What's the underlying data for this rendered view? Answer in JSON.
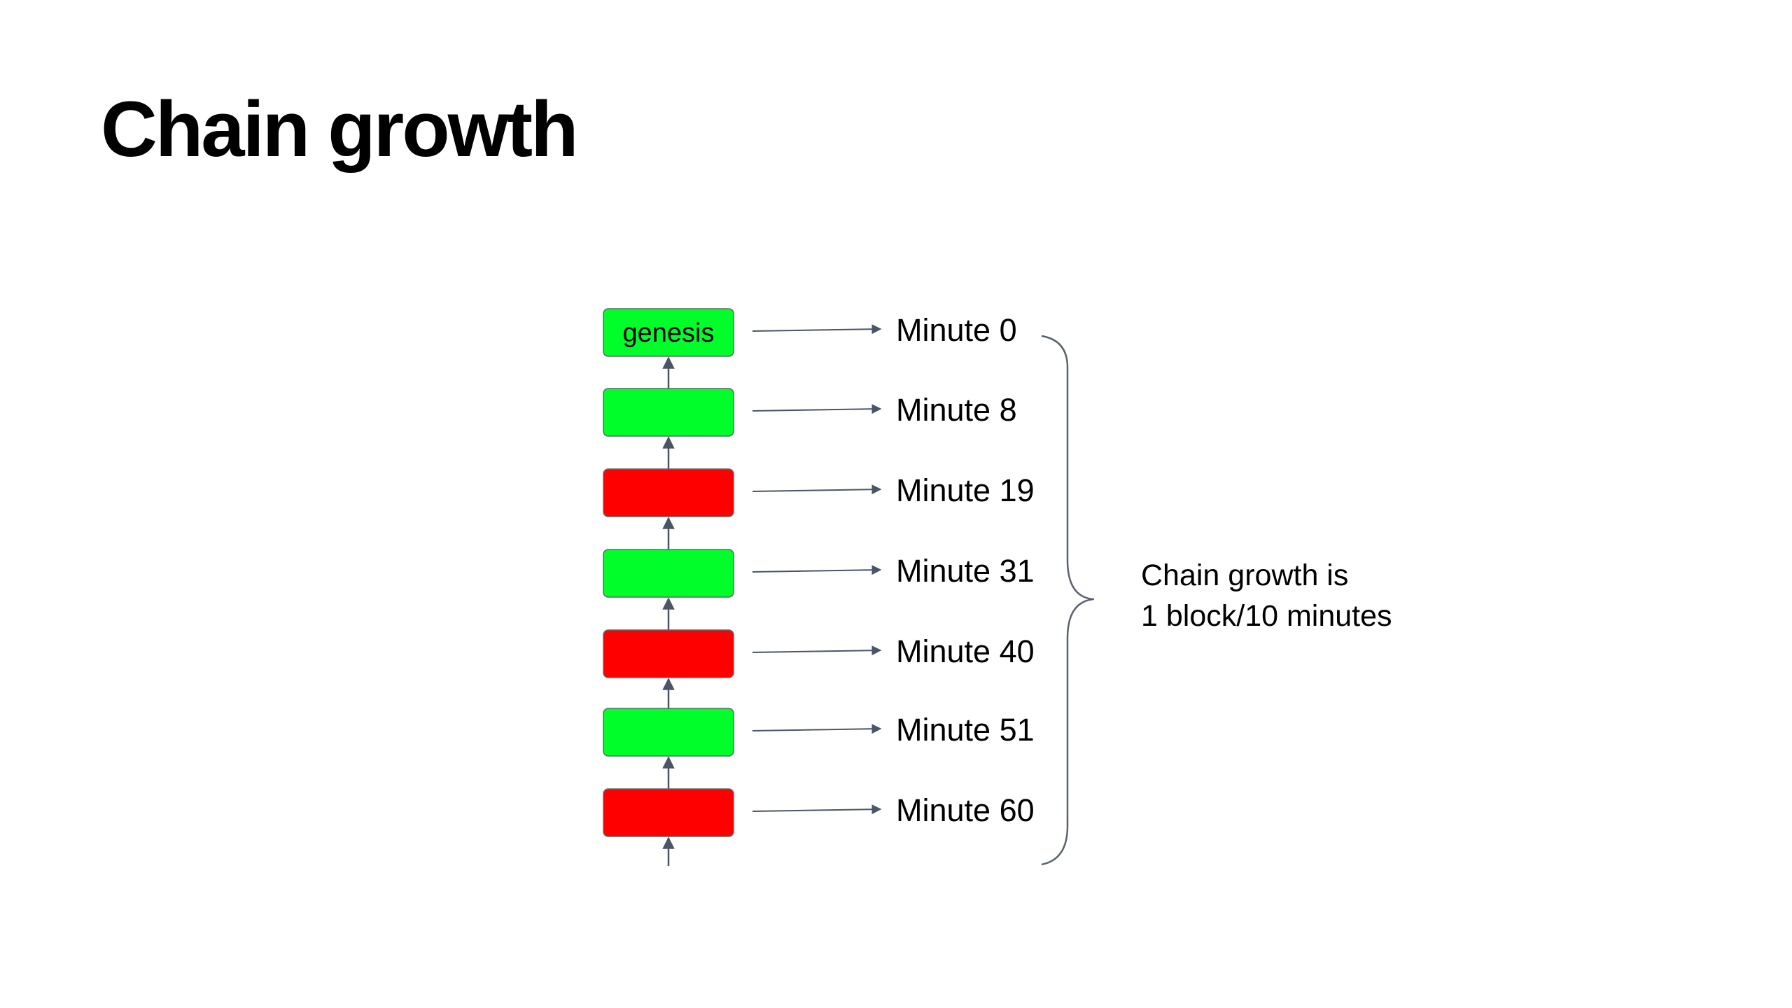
{
  "slide": {
    "title": "Chain growth"
  },
  "colors": {
    "valid_block": "#00ff2a",
    "orphan_block": "#ff0000",
    "block_border": "#5f6a6a",
    "arrow": "#4a5568",
    "brace": "#5a6470"
  },
  "blocks": [
    {
      "label": "genesis",
      "time": "Minute 0",
      "color": "green"
    },
    {
      "label": "",
      "time": "Minute 8",
      "color": "green"
    },
    {
      "label": "",
      "time": "Minute 19",
      "color": "red"
    },
    {
      "label": "",
      "time": "Minute 31",
      "color": "green"
    },
    {
      "label": "",
      "time": "Minute 40",
      "color": "red"
    },
    {
      "label": "",
      "time": "Minute 51",
      "color": "green"
    },
    {
      "label": "",
      "time": "Minute 60",
      "color": "red"
    }
  ],
  "summary": {
    "line1": "Chain growth is",
    "line2": "1 block/10 minutes"
  }
}
